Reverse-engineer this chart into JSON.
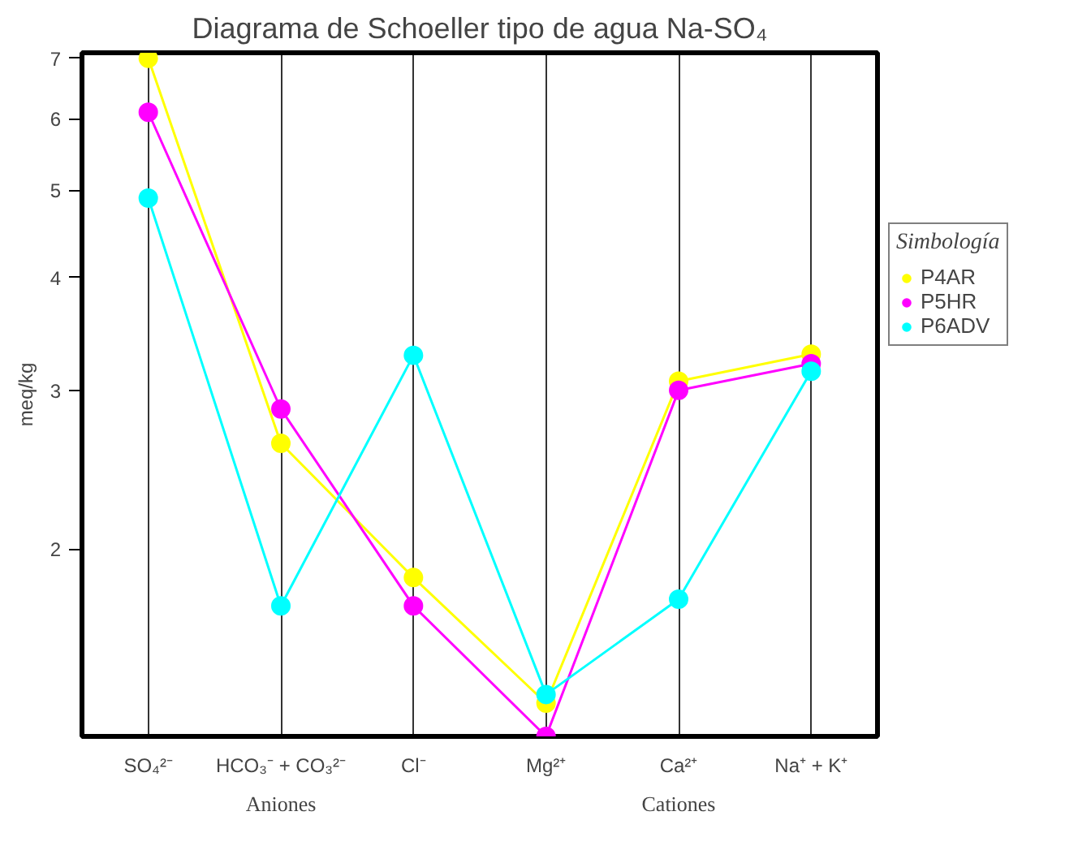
{
  "chart_data": {
    "type": "line",
    "title": "Diagrama de Schoeller tipo de agua Na-SO₄",
    "ylabel": "meq/kg",
    "legend_title": "Simbología",
    "categories": [
      "SO₄²⁻",
      "HCO₃⁻ + CO₃²⁻",
      "Cl⁻",
      "Mg²⁺",
      "Ca²⁺",
      "Na⁺ + K⁺"
    ],
    "annotations": [
      "Aniones",
      "Cationes"
    ],
    "series": [
      {
        "name": "P4AR",
        "color": "#ffff00",
        "values": [
          7.0,
          2.62,
          1.86,
          1.35,
          3.07,
          3.29
        ]
      },
      {
        "name": "P5HR",
        "color": "#ff00ff",
        "values": [
          6.1,
          2.86,
          1.73,
          1.24,
          3.0,
          3.21
        ]
      },
      {
        "name": "P6ADV",
        "color": "#00ffff",
        "values": [
          4.9,
          1.73,
          3.28,
          1.38,
          1.76,
          3.15
        ]
      }
    ],
    "log": "y",
    "ylim": [
      1.24,
      7.1
    ],
    "yticks": [
      2,
      3,
      4,
      5,
      6,
      7
    ],
    "grid": "x",
    "legend": "right",
    "marker": "circle",
    "line_style": "solid"
  }
}
